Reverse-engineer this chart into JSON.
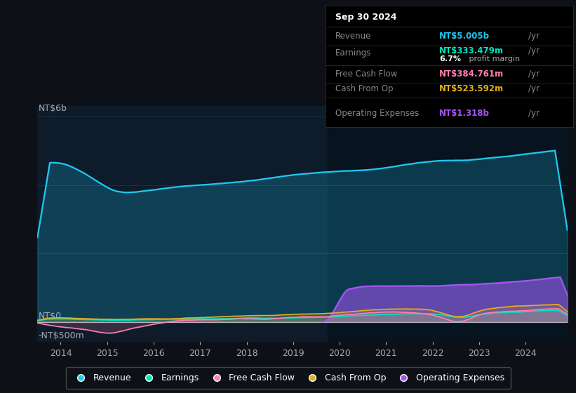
{
  "bg_color": "#0d1117",
  "plot_bg_color": "#0d1b2a",
  "plot_bg_dark": "#07111e",
  "ylabel": "NT$6b",
  "y_zero_label": "NT$0",
  "y_neg_label": "-NT$500m",
  "x_ticks": [
    2014,
    2015,
    2016,
    2017,
    2018,
    2019,
    2020,
    2021,
    2022,
    2023,
    2024
  ],
  "ylim": [
    -580,
    6300
  ],
  "colors": {
    "revenue": "#1ec8f0",
    "earnings": "#00e5c0",
    "free_cash_flow": "#ff7eb3",
    "cash_from_op": "#e0b020",
    "operating_expenses": "#a855f7"
  },
  "legend_items": [
    "Revenue",
    "Earnings",
    "Free Cash Flow",
    "Cash From Op",
    "Operating Expenses"
  ],
  "tooltip": {
    "date": "Sep 30 2024",
    "revenue_label": "Revenue",
    "revenue_value": "NT$5.005b",
    "earnings_label": "Earnings",
    "earnings_value": "NT$333.479m",
    "margin_value": "6.7%",
    "margin_text": " profit margin",
    "fcf_label": "Free Cash Flow",
    "fcf_value": "NT$384.761m",
    "cfo_label": "Cash From Op",
    "cfo_value": "NT$523.592m",
    "opex_label": "Operating Expenses",
    "opex_value": "NT$1.318b"
  }
}
